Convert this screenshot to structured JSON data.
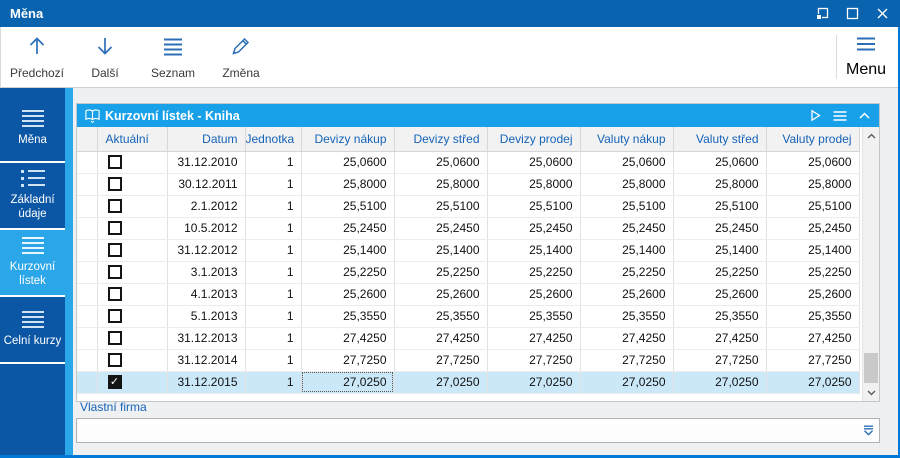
{
  "window": {
    "title": "Měna"
  },
  "toolbar": {
    "buttons": [
      {
        "label": "Předchozí",
        "icon": "arrow-up-icon"
      },
      {
        "label": "Další",
        "icon": "arrow-down-icon"
      },
      {
        "label": "Seznam",
        "icon": "list-icon"
      },
      {
        "label": "Změna",
        "icon": "pencil-icon"
      }
    ],
    "menu_label": "Menu"
  },
  "sidebar": {
    "items": [
      {
        "label": "Měna",
        "icon": "menu-lines-icon",
        "active": false
      },
      {
        "label": "Základní údaje",
        "icon": "bullet-list-icon",
        "active": false
      },
      {
        "label": "Kurzovní lístek",
        "icon": "menu-lines-icon",
        "active": true
      },
      {
        "label": "Celní kurzy",
        "icon": "menu-lines-icon",
        "active": false
      }
    ]
  },
  "panel": {
    "title": "Kurzovní lístek - Kniha"
  },
  "grid": {
    "columns": [
      "",
      "Aktuální",
      "Datum",
      "Jednotka",
      "Devizy nákup",
      "Devizy střed",
      "Devizy prodej",
      "Valuty nákup",
      "Valuty střed",
      "Valuty prodej"
    ],
    "rows": [
      {
        "aktualni": false,
        "datum": "31.12.2010",
        "jednotka": "1",
        "rates": [
          "25,0600",
          "25,0600",
          "25,0600",
          "25,0600",
          "25,0600",
          "25,0600"
        ]
      },
      {
        "aktualni": false,
        "datum": "30.12.2011",
        "jednotka": "1",
        "rates": [
          "25,8000",
          "25,8000",
          "25,8000",
          "25,8000",
          "25,8000",
          "25,8000"
        ]
      },
      {
        "aktualni": false,
        "datum": "2.1.2012",
        "jednotka": "1",
        "rates": [
          "25,5100",
          "25,5100",
          "25,5100",
          "25,5100",
          "25,5100",
          "25,5100"
        ]
      },
      {
        "aktualni": false,
        "datum": "10.5.2012",
        "jednotka": "1",
        "rates": [
          "25,2450",
          "25,2450",
          "25,2450",
          "25,2450",
          "25,2450",
          "25,2450"
        ]
      },
      {
        "aktualni": false,
        "datum": "31.12.2012",
        "jednotka": "1",
        "rates": [
          "25,1400",
          "25,1400",
          "25,1400",
          "25,1400",
          "25,1400",
          "25,1400"
        ]
      },
      {
        "aktualni": false,
        "datum": "3.1.2013",
        "jednotka": "1",
        "rates": [
          "25,2250",
          "25,2250",
          "25,2250",
          "25,2250",
          "25,2250",
          "25,2250"
        ]
      },
      {
        "aktualni": false,
        "datum": "4.1.2013",
        "jednotka": "1",
        "rates": [
          "25,2600",
          "25,2600",
          "25,2600",
          "25,2600",
          "25,2600",
          "25,2600"
        ]
      },
      {
        "aktualni": false,
        "datum": "5.1.2013",
        "jednotka": "1",
        "rates": [
          "25,3550",
          "25,3550",
          "25,3550",
          "25,3550",
          "25,3550",
          "25,3550"
        ]
      },
      {
        "aktualni": false,
        "datum": "31.12.2013",
        "jednotka": "1",
        "rates": [
          "27,4250",
          "27,4250",
          "27,4250",
          "27,4250",
          "27,4250",
          "27,4250"
        ]
      },
      {
        "aktualni": false,
        "datum": "31.12.2014",
        "jednotka": "1",
        "rates": [
          "27,7250",
          "27,7250",
          "27,7250",
          "27,7250",
          "27,7250",
          "27,7250"
        ]
      },
      {
        "aktualni": true,
        "datum": "31.12.2015",
        "jednotka": "1",
        "rates": [
          "27,0250",
          "27,0250",
          "27,0250",
          "27,0250",
          "27,0250",
          "27,0250"
        ]
      }
    ],
    "selected_row_index": 10,
    "focus_rate_index": 0,
    "check_glyph": "✓"
  },
  "footer": {
    "label": "Vlastní firma",
    "value": ""
  },
  "colors": {
    "titlebar": "#0a63ae",
    "window_border": "#0078d7",
    "sidebar": "#0b57a5",
    "sidebar_active": "#2ba6e8",
    "panel_header": "#18a0e8",
    "header_text": "#1563b8",
    "selected_row": "#cbe8f9",
    "icon_blue": "#2c6fb7"
  }
}
